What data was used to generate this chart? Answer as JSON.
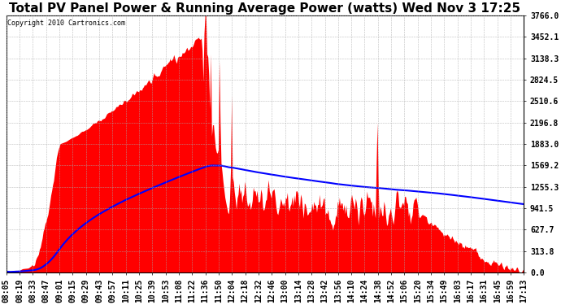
{
  "title": "Total PV Panel Power & Running Average Power (watts) Wed Nov 3 17:25",
  "copyright": "Copyright 2010 Cartronics.com",
  "background_color": "#ffffff",
  "plot_bg_color": "#ffffff",
  "grid_color": "#aaaaaa",
  "fill_color": "#ff0000",
  "line_color": "#0000ff",
  "yticks": [
    0.0,
    313.8,
    627.7,
    941.5,
    1255.3,
    1569.2,
    1883.0,
    2196.8,
    2510.6,
    2824.5,
    3138.3,
    3452.1,
    3766.0
  ],
  "xtick_labels": [
    "08:05",
    "08:19",
    "08:33",
    "08:47",
    "09:01",
    "09:15",
    "09:29",
    "09:43",
    "09:57",
    "10:11",
    "10:25",
    "10:39",
    "10:53",
    "11:08",
    "11:22",
    "11:36",
    "11:50",
    "12:04",
    "12:18",
    "12:32",
    "12:46",
    "13:00",
    "13:14",
    "13:28",
    "13:42",
    "13:56",
    "14:10",
    "14:24",
    "14:38",
    "14:52",
    "15:06",
    "15:20",
    "15:34",
    "15:49",
    "16:03",
    "16:17",
    "16:31",
    "16:45",
    "16:59",
    "17:13"
  ],
  "ymax": 3766.0,
  "ymin": 0.0,
  "title_fontsize": 11,
  "tick_fontsize": 7.0,
  "figwidth": 6.9,
  "figheight": 3.75,
  "dpi": 100
}
